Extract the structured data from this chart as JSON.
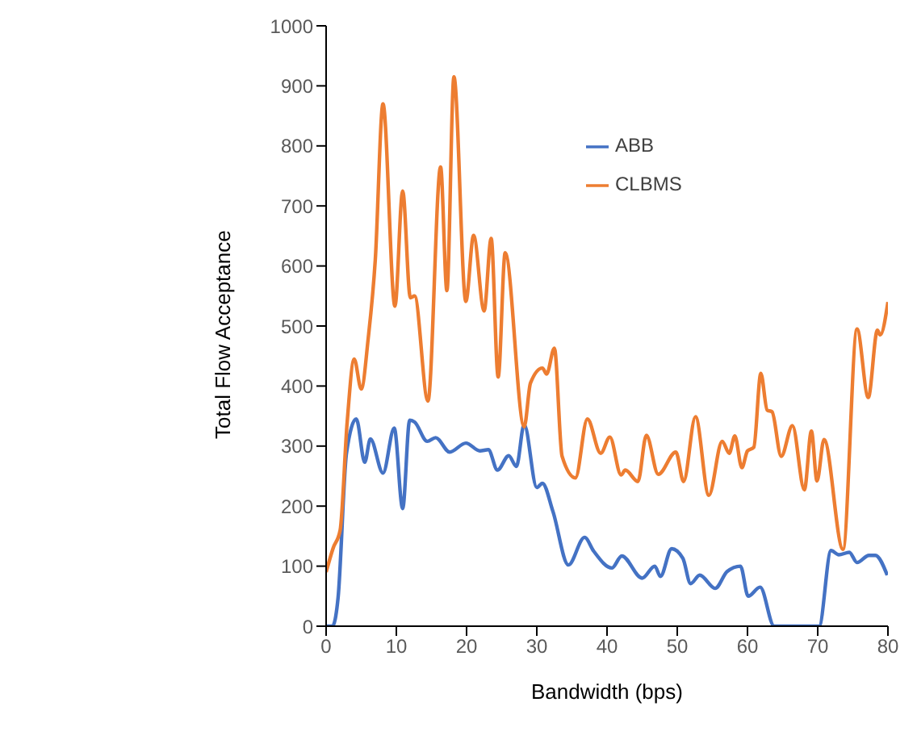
{
  "chart_data": {
    "type": "line",
    "xlabel": "Bandwidth (bps)",
    "ylabel": "Total Flow Acceptance",
    "xlim": [
      0,
      80
    ],
    "xticks": [
      0,
      10,
      20,
      30,
      40,
      50,
      60,
      70,
      80
    ],
    "ylim": [
      0,
      1000
    ],
    "yticks": [
      0,
      100,
      200,
      300,
      400,
      500,
      600,
      700,
      800,
      900,
      1000
    ],
    "grid": false,
    "legend": "top right",
    "marker": "none",
    "line_style": "solid",
    "series": [
      {
        "name": "ABB",
        "color": "#4472c4",
        "x": [
          0,
          0.9,
          1.7,
          2.9,
          4.3,
          5.5,
          6.3,
          8.1,
          9.7,
          10.9,
          11.9,
          12.6,
          14.4,
          15.6,
          17.6,
          19.9,
          21.9,
          23.1,
          24.4,
          26,
          27.1,
          28.2,
          30,
          30.8,
          32.3,
          34.5,
          36.8,
          38.1,
          40.7,
          42.1,
          45,
          46.8,
          47.6,
          49.2,
          50.8,
          51.9,
          53.2,
          55.4,
          57.1,
          59,
          60.1,
          61.8,
          63.8,
          69.6,
          70.2,
          71.9,
          73,
          74.5,
          75.6,
          77.3,
          78.2,
          79.9
        ],
        "values": [
          0,
          0,
          47,
          288,
          345,
          273,
          312,
          255,
          330,
          196,
          343,
          340,
          308,
          314,
          290,
          305,
          292,
          294,
          260,
          284,
          266,
          336,
          231,
          238,
          191,
          102,
          148,
          125,
          97,
          117,
          80,
          100,
          83,
          129,
          113,
          71,
          85,
          63,
          91,
          100,
          50,
          65,
          0,
          0,
          0,
          126,
          119,
          123,
          106,
          118,
          118,
          85
        ]
      },
      {
        "name": "CLBMS",
        "color": "#ed7d31",
        "x": [
          0,
          1,
          2,
          3,
          4,
          5,
          6,
          7,
          8.1,
          9.8,
          10.9,
          12,
          12.6,
          14.5,
          16.3,
          17.2,
          18.2,
          19.9,
          21,
          22.5,
          23.5,
          24.5,
          25.5,
          28.2,
          29.1,
          30.8,
          31.4,
          32.5,
          33.6,
          35.5,
          37.2,
          39.1,
          40.4,
          42,
          42.6,
          44.4,
          45.6,
          47.3,
          49.8,
          50.9,
          52.6,
          54.5,
          56.4,
          57.4,
          58.2,
          59.2,
          60,
          60.9,
          61.9,
          62.8,
          63.5,
          64.8,
          66.4,
          68.1,
          69.1,
          69.9,
          70.9,
          73.6,
          75.6,
          77.2,
          78.5,
          78.9,
          80
        ],
        "values": [
          90,
          130,
          160,
          340,
          445,
          395,
          480,
          610,
          870,
          533,
          725,
          547,
          550,
          375,
          765,
          559,
          915,
          541,
          651,
          525,
          646,
          415,
          622,
          332,
          405,
          430,
          420,
          463,
          283,
          247,
          345,
          288,
          315,
          252,
          260,
          241,
          318,
          253,
          290,
          241,
          349,
          218,
          308,
          288,
          317,
          264,
          292,
          298,
          421,
          360,
          357,
          283,
          334,
          227,
          325,
          242,
          311,
          128,
          495,
          381,
          493,
          485,
          540
        ]
      }
    ]
  }
}
